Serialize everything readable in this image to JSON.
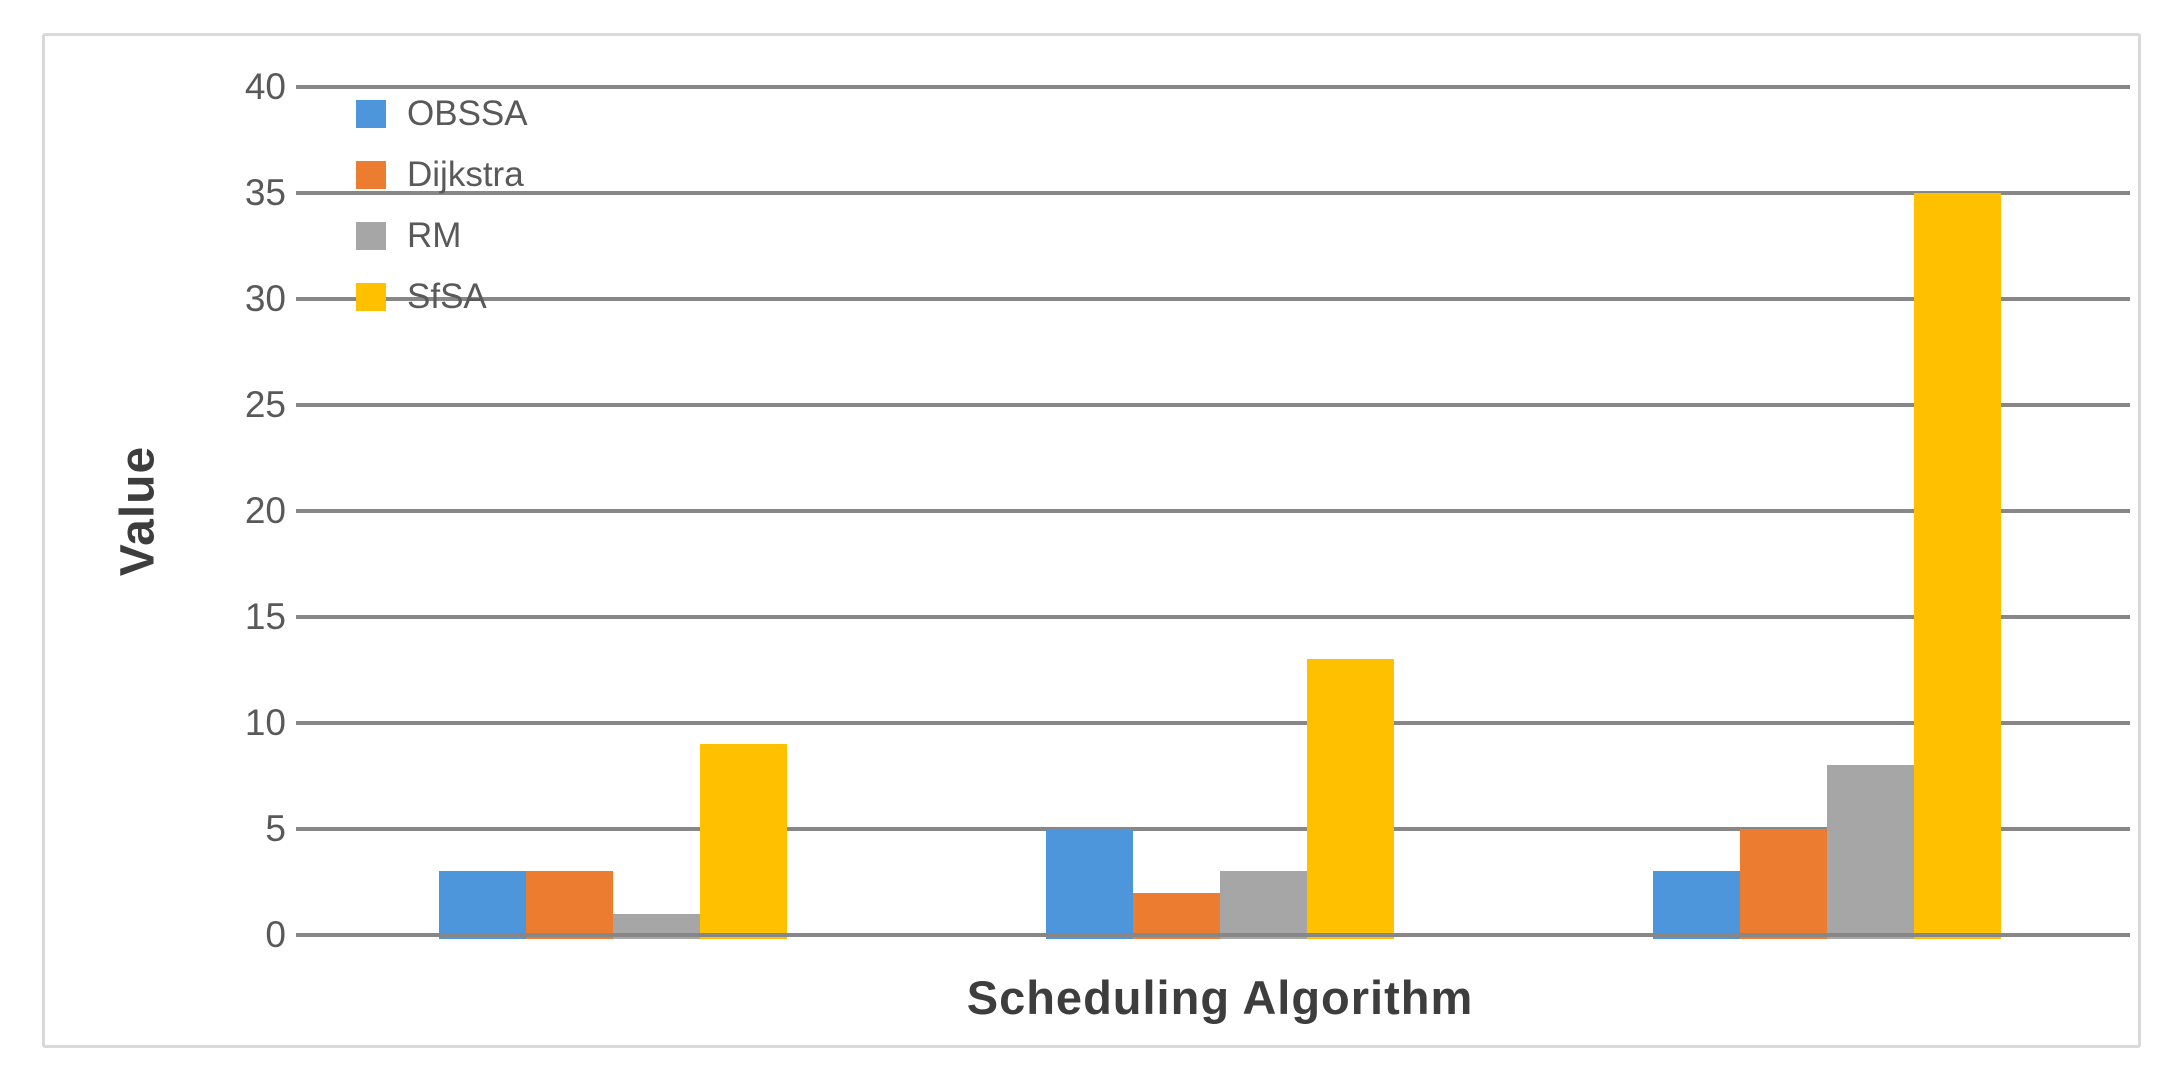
{
  "chart_data": {
    "type": "bar",
    "title": "",
    "xlabel": "Scheduling Algorithm",
    "ylabel": "Value",
    "categories": [
      "",
      "",
      ""
    ],
    "series": [
      {
        "name": "OBSSA",
        "color": "#4D96DB",
        "values": [
          3,
          5,
          3
        ]
      },
      {
        "name": "Dijkstra",
        "color": "#EC7C30",
        "values": [
          3,
          2,
          5
        ]
      },
      {
        "name": "RM",
        "color": "#A6A6A6",
        "values": [
          1,
          3,
          8
        ]
      },
      {
        "name": "SfSA",
        "color": "#FFC000",
        "values": [
          9,
          13,
          35
        ]
      }
    ],
    "ylim": [
      0,
      40
    ],
    "yticks": [
      0,
      5,
      10,
      15,
      20,
      25,
      30,
      35,
      40
    ],
    "grid": true,
    "legend_position": "top-left-inside"
  },
  "styles": {
    "gridline_color": "#878787",
    "frame_border_color": "#D9D9D9",
    "tick_text_color": "#595959",
    "axis_title_color": "#3D3D3D",
    "background_color": "#FFFFFF"
  }
}
